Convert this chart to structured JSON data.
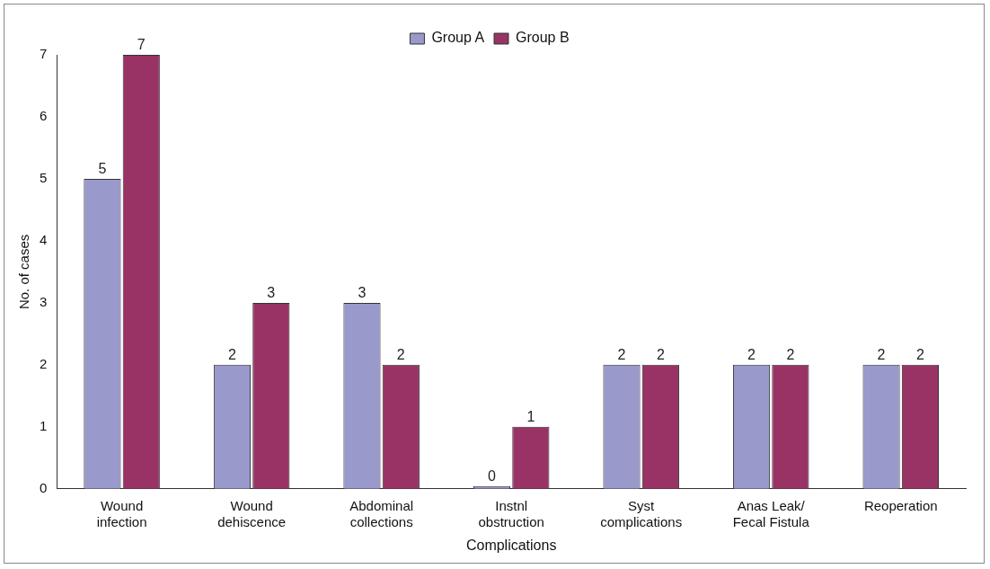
{
  "chart_data": {
    "type": "bar",
    "xlabel": "Complications",
    "ylabel": "No. of cases",
    "categories": [
      "Wound infection",
      "Wound dehiscence",
      "Abdominal collections",
      "Instnl obstruction",
      "Syst complications",
      "Anas Leak/ Fecal Fistula",
      "Reoperation"
    ],
    "series": [
      {
        "name": "Group A",
        "color": "#9999cc",
        "values": [
          5,
          2,
          3,
          0,
          2,
          2,
          2
        ]
      },
      {
        "name": "Group B",
        "color": "#993366",
        "values": [
          7,
          3,
          2,
          1,
          2,
          2,
          2
        ]
      }
    ],
    "ylim": [
      0,
      7
    ],
    "yticks": [
      0,
      1,
      2,
      3,
      4,
      5,
      6,
      7
    ],
    "grid": false,
    "legend": "top",
    "data_labels": true
  }
}
